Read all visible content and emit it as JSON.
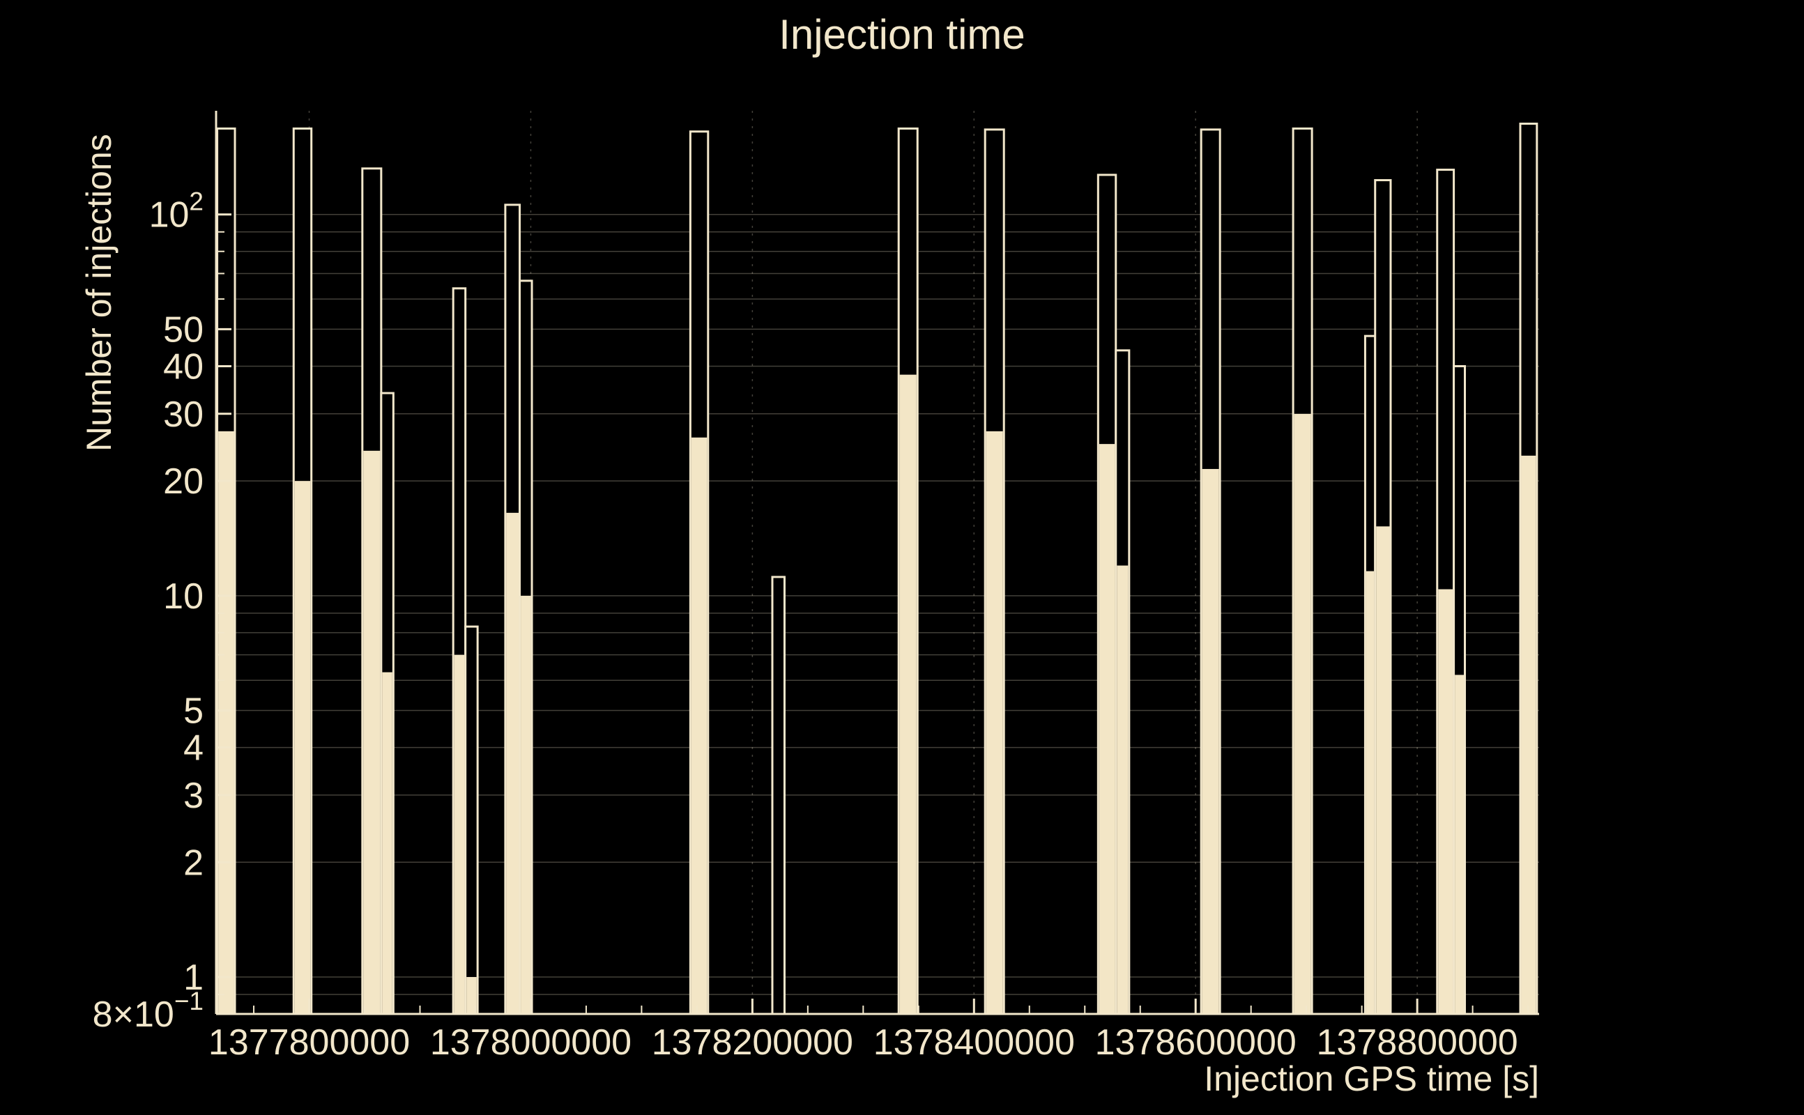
{
  "chart_data": {
    "type": "bar",
    "subtype": "histogram-log-y",
    "title": "Injection time",
    "xlabel": "Injection GPS time [s]",
    "ylabel": "Number of injections",
    "yscale": "log",
    "xscale": "linear",
    "ylim": [
      0.8,
      187
    ],
    "xlim": [
      1377716000,
      1378910000
    ],
    "grid": "on",
    "legend": "none",
    "x_ticks": [
      {
        "value": 1377800000,
        "label": "1377800000"
      },
      {
        "value": 1378000000,
        "label": "1378000000"
      },
      {
        "value": 1378200000,
        "label": "1378200000"
      },
      {
        "value": 1378400000,
        "label": "1378400000"
      },
      {
        "value": 1378600000,
        "label": "1378600000"
      },
      {
        "value": 1378800000,
        "label": "1378800000"
      }
    ],
    "x_minor_step": 50000,
    "y_ticks": [
      {
        "value": 100,
        "main": "10",
        "sup": "2"
      },
      {
        "value": 50,
        "main": "50"
      },
      {
        "value": 40,
        "main": "40"
      },
      {
        "value": 30,
        "main": "30"
      },
      {
        "value": 20,
        "main": "20"
      },
      {
        "value": 10,
        "main": "10"
      },
      {
        "value": 5,
        "main": "5"
      },
      {
        "value": 4,
        "main": "4"
      },
      {
        "value": 3,
        "main": "3"
      },
      {
        "value": 2,
        "main": "2"
      },
      {
        "value": 1,
        "main": "1"
      },
      {
        "value": 0.8,
        "main": "8×10",
        "sup": "−1"
      }
    ],
    "y_grid_values": [
      0.9,
      1,
      2,
      3,
      4,
      5,
      6,
      7,
      8,
      9,
      10,
      20,
      30,
      40,
      50,
      60,
      70,
      80,
      90,
      100
    ],
    "colors": {
      "background": "#000000",
      "foreground": "#f2e7cb",
      "bar_fill": "#f3e6c6",
      "grid": "rgba(242,231,203,0.28)"
    },
    "series": [
      {
        "name": "all-injections-outline",
        "style": "outline",
        "bins": [
          [
            1377717000,
            1377733000,
            168
          ],
          [
            1377786000,
            1377802000,
            168
          ],
          [
            1377848000,
            1377865000,
            132
          ],
          [
            1377865000,
            1377876000,
            34
          ],
          [
            1377930000,
            1377941000,
            64
          ],
          [
            1377941000,
            1377952000,
            8.3
          ],
          [
            1377977000,
            1377990000,
            106
          ],
          [
            1377990000,
            1378001000,
            67
          ],
          [
            1378144000,
            1378160000,
            165
          ],
          [
            1378218000,
            1378229000,
            11.2
          ],
          [
            1378332000,
            1378349000,
            168
          ],
          [
            1378410000,
            1378427000,
            167
          ],
          [
            1378512000,
            1378528000,
            127
          ],
          [
            1378528000,
            1378540000,
            44
          ],
          [
            1378605000,
            1378622000,
            167
          ],
          [
            1378688000,
            1378705000,
            168
          ],
          [
            1378753000,
            1378762000,
            48
          ],
          [
            1378762000,
            1378776000,
            123
          ],
          [
            1378818000,
            1378833000,
            131
          ],
          [
            1378833000,
            1378843000,
            40
          ],
          [
            1378893000,
            1378908000,
            173
          ]
        ]
      },
      {
        "name": "selected-injections-filled",
        "style": "fill",
        "bins": [
          [
            1377717000,
            1377733000,
            27
          ],
          [
            1377786000,
            1377802000,
            20
          ],
          [
            1377848000,
            1377865000,
            24
          ],
          [
            1377865000,
            1377876000,
            6.3
          ],
          [
            1377930000,
            1377941000,
            7
          ],
          [
            1377941000,
            1377952000,
            1
          ],
          [
            1377977000,
            1377990000,
            16.5
          ],
          [
            1377990000,
            1378001000,
            10
          ],
          [
            1378144000,
            1378160000,
            26
          ],
          [
            1378218000,
            1378229000,
            0
          ],
          [
            1378332000,
            1378349000,
            38
          ],
          [
            1378410000,
            1378427000,
            27
          ],
          [
            1378512000,
            1378528000,
            25
          ],
          [
            1378528000,
            1378540000,
            12
          ],
          [
            1378605000,
            1378622000,
            21.5
          ],
          [
            1378688000,
            1378705000,
            30
          ],
          [
            1378753000,
            1378762000,
            11.6
          ],
          [
            1378762000,
            1378776000,
            15.2
          ],
          [
            1378818000,
            1378833000,
            10.4
          ],
          [
            1378833000,
            1378843000,
            6.2
          ],
          [
            1378893000,
            1378908000,
            23.3
          ]
        ]
      }
    ]
  }
}
